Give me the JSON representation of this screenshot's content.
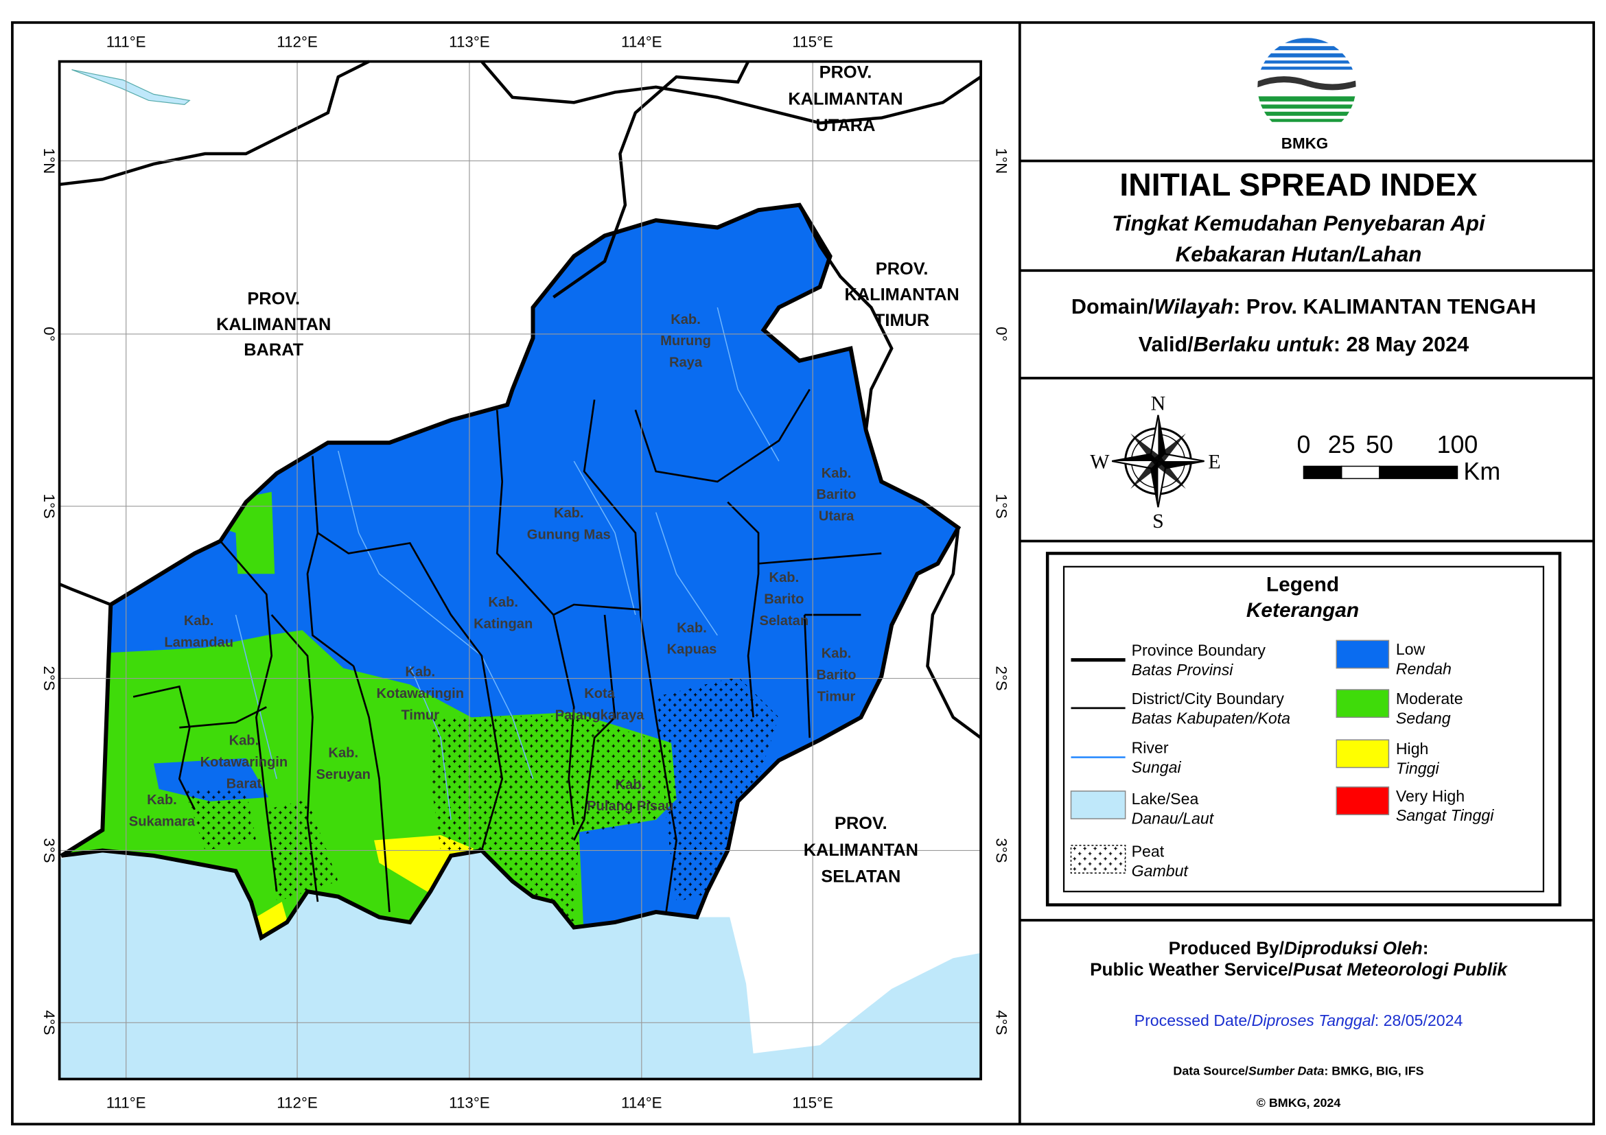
{
  "map": {
    "axes": {
      "lon": [
        "111°E",
        "112°E",
        "113°E",
        "114°E",
        "115°E"
      ],
      "lat": [
        "1°N",
        "0°",
        "1°S",
        "2°S",
        "3°S",
        "4°S"
      ]
    },
    "provinces": [
      {
        "lines": [
          "PROV.",
          "KALIMANTAN",
          "UTARA"
        ]
      },
      {
        "lines": [
          "PROV.",
          "KALIMANTAN",
          "BARAT"
        ]
      },
      {
        "lines": [
          "PROV.",
          "KALIMANTAN",
          "TIMUR"
        ]
      },
      {
        "lines": [
          "PROV.",
          "KALIMANTAN",
          "SELATAN"
        ]
      }
    ],
    "districts": [
      {
        "lines": [
          "Kab.",
          "Murung",
          "Raya"
        ]
      },
      {
        "lines": [
          "Kab.",
          "Barito",
          "Utara"
        ]
      },
      {
        "lines": [
          "Kab.",
          "Gunung Mas"
        ]
      },
      {
        "lines": [
          "Kab.",
          "Katingan"
        ]
      },
      {
        "lines": [
          "Kab.",
          "Barito",
          "Selatan"
        ]
      },
      {
        "lines": [
          "Kab.",
          "Kapuas"
        ]
      },
      {
        "lines": [
          "Kab.",
          "Barito",
          "Timur"
        ]
      },
      {
        "lines": [
          "Kab.",
          "Lamandau"
        ]
      },
      {
        "lines": [
          "Kab.",
          "Kotawaringin",
          "Timur"
        ]
      },
      {
        "lines": [
          "Kota",
          "Palangkaraya"
        ]
      },
      {
        "lines": [
          "Kab.",
          "Kotawaringin",
          "Barat"
        ]
      },
      {
        "lines": [
          "Kab.",
          "Seruyan"
        ]
      },
      {
        "lines": [
          "Kab.",
          "Pulang Pisau"
        ]
      },
      {
        "lines": [
          "Kab.",
          "Sukamara"
        ]
      }
    ]
  },
  "panel": {
    "logo_text": "BMKG",
    "title": "INITIAL SPREAD INDEX",
    "subtitle": [
      "Tingkat Kemudahan Penyebaran Api",
      "Kebakaran Hutan/Lahan"
    ],
    "domain": {
      "label": "Domain/",
      "label_id": "Wilayah",
      "value": ": Prov. KALIMANTAN TENGAH"
    },
    "valid": {
      "label": "Valid/",
      "label_id": "Berlaku untuk",
      "value": ": 28 May 2024"
    },
    "compass": {
      "n": "N",
      "s": "S",
      "e": "E",
      "w": "W"
    },
    "scale": {
      "labels": [
        "0",
        "25",
        "50",
        "100"
      ],
      "unit": "Km"
    },
    "legend": {
      "title": "Legend",
      "title_id": "Keterangan",
      "features": [
        {
          "label": "Province Boundary",
          "label_id": "Batas Provinsi"
        },
        {
          "label": "District/City Boundary",
          "label_id": "Batas Kabupaten/Kota"
        },
        {
          "label": "River",
          "label_id": "Sungai"
        },
        {
          "label": "Lake/Sea",
          "label_id": "Danau/Laut"
        },
        {
          "label": "Peat",
          "label_id": "Gambut"
        }
      ],
      "classes": [
        {
          "label": "Low",
          "label_id": "Rendah",
          "color": "#0a6cf0"
        },
        {
          "label": "Moderate",
          "label_id": "Sedang",
          "color": "#3fdb0a"
        },
        {
          "label": "High",
          "label_id": "Tinggi",
          "color": "#ffff00"
        },
        {
          "label": "Very High",
          "label_id": "Sangat Tinggi",
          "color": "#ff0000"
        }
      ]
    },
    "produced": {
      "label": "Produced By/",
      "label_id": "Diproduksi Oleh",
      "colon": ":"
    },
    "producer": {
      "label": "Public Weather Service/",
      "label_id": "Pusat Meteorologi Publik"
    },
    "processed": {
      "label": "Processed Date/",
      "label_id": "Diproses Tanggal",
      "value": ": 28/05/2024"
    },
    "source": {
      "label": "Data Source/",
      "label_id": "Sumber Data",
      "value": ": BMKG, BIG, IFS"
    },
    "copyright": "© BMKG, 2024"
  }
}
